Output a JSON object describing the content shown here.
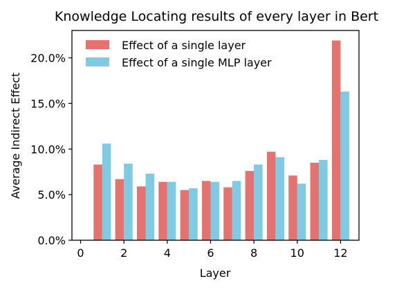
{
  "chart_data": {
    "type": "bar",
    "title": "Knowledge Locating results of every layer in Bert",
    "xlabel": "Layer",
    "ylabel": "Average Indirect Effect",
    "x": [
      1,
      2,
      3,
      4,
      5,
      6,
      7,
      8,
      9,
      10,
      11,
      12
    ],
    "xlim": [
      -0.4,
      12.85
    ],
    "ylim": [
      0,
      23
    ],
    "xticks": [
      0,
      2,
      4,
      6,
      8,
      10,
      12
    ],
    "yticks": [
      0,
      5,
      10,
      15,
      20
    ],
    "ytick_labels": [
      "0.0%",
      "5.0%",
      "10.0%",
      "15.0%",
      "20.0%"
    ],
    "grid": false,
    "legend": "top-left",
    "series": [
      {
        "name": "Effect of a single layer",
        "color": "#E4736F",
        "values": [
          8.3,
          6.7,
          5.9,
          6.4,
          5.5,
          6.5,
          5.8,
          7.6,
          9.7,
          7.1,
          8.5,
          21.9
        ]
      },
      {
        "name": "Effect of a single MLP layer",
        "color": "#7ECBE3",
        "values": [
          10.6,
          8.4,
          7.3,
          6.4,
          5.7,
          6.4,
          6.5,
          8.3,
          9.1,
          6.2,
          8.8,
          16.3
        ]
      }
    ]
  }
}
